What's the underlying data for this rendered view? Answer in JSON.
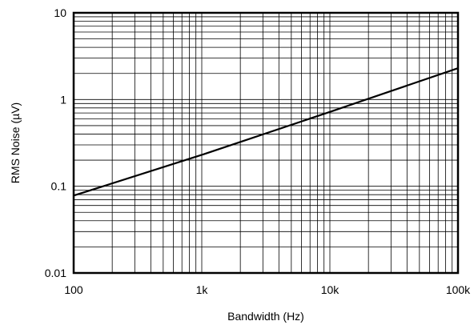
{
  "chart_data": {
    "type": "line",
    "title": "",
    "xlabel": "Bandwidth (Hz)",
    "ylabel": "RMS Noise (µV)",
    "x_scale": "log",
    "y_scale": "log",
    "xlim": [
      100,
      100000
    ],
    "ylim": [
      0.01,
      10
    ],
    "grid": true,
    "x_ticks": [
      {
        "value": 100,
        "label": "100"
      },
      {
        "value": 1000,
        "label": "1k"
      },
      {
        "value": 10000,
        "label": "10k"
      },
      {
        "value": 100000,
        "label": "100k"
      }
    ],
    "y_ticks": [
      {
        "value": 0.01,
        "label": "0.01"
      },
      {
        "value": 0.1,
        "label": "0.1"
      },
      {
        "value": 1,
        "label": "1"
      },
      {
        "value": 10,
        "label": "10"
      }
    ],
    "series": [
      {
        "x": [
          100,
          1000,
          10000,
          100000
        ],
        "y": [
          0.078,
          0.23,
          0.72,
          2.3
        ]
      }
    ],
    "colors": {
      "line": "#000000",
      "grid": "#000000",
      "background": "#ffffff"
    }
  }
}
